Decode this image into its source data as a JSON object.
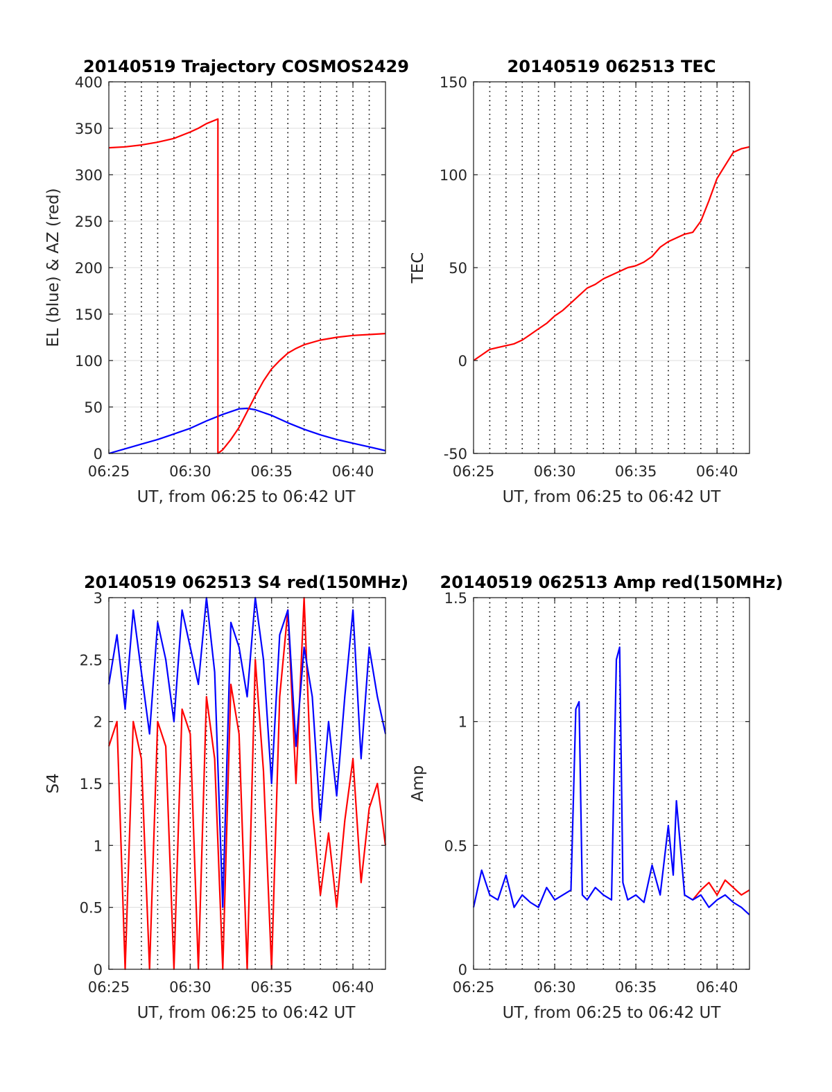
{
  "figure_background": "#ffffff",
  "colors": {
    "el": "#0000ff",
    "az": "#ff0000",
    "red_series": "#ff0000",
    "blue_series": "#0000ff",
    "grid": "#000000",
    "axes": "#262626"
  },
  "chart_data": [
    {
      "type": "line",
      "title": "20140519 Trajectory COSMOS2429",
      "xlabel": "UT, from 06:25 to 06:42 UT",
      "ylabel": "EL (blue) & AZ (red)",
      "xlim": [
        0,
        17
      ],
      "ylim": [
        0,
        400
      ],
      "yticks": [
        "0",
        "50",
        "100",
        "150",
        "200",
        "250",
        "300",
        "350",
        "400"
      ],
      "ytick_values": [
        0,
        50,
        100,
        150,
        200,
        250,
        300,
        350,
        400
      ],
      "xticks": [
        "06:25",
        "06:30",
        "06:35",
        "06:40"
      ],
      "xtick_values": [
        0,
        5,
        10,
        15
      ],
      "grid": "horizontal solid at y ticks, vertical dotted every minute",
      "series": [
        {
          "name": "EL (blue)",
          "color": "#0000ff",
          "x": [
            0,
            1,
            2,
            3,
            4,
            5,
            6,
            7,
            8,
            8.5,
            9,
            10,
            11,
            12,
            13,
            14,
            15,
            16,
            17
          ],
          "y": [
            0,
            5,
            10,
            15,
            21,
            27,
            35,
            42,
            48,
            48.5,
            47,
            41,
            33,
            26,
            20,
            15,
            11,
            7,
            3
          ]
        },
        {
          "name": "AZ (red)",
          "color": "#ff0000",
          "x": [
            0,
            1,
            2,
            3,
            4,
            5,
            5.5,
            6,
            6.7,
            6.7,
            7,
            7.5,
            8,
            8.5,
            9,
            9.5,
            10,
            10.5,
            11,
            11.5,
            12,
            13,
            14,
            15,
            16,
            17
          ],
          "y": [
            329,
            330,
            332,
            335,
            339,
            346,
            350,
            355,
            360,
            0,
            4,
            15,
            28,
            45,
            62,
            78,
            91,
            100,
            108,
            113,
            117,
            122,
            125,
            127,
            128,
            129
          ]
        }
      ]
    },
    {
      "type": "line",
      "title": "20140519 062513 TEC",
      "xlabel": "UT, from 06:25 to 06:42 UT",
      "ylabel": "TEC",
      "xlim": [
        0,
        17
      ],
      "ylim": [
        -50,
        150
      ],
      "yticks": [
        "-50",
        "0",
        "50",
        "100",
        "150"
      ],
      "ytick_values": [
        -50,
        0,
        50,
        100,
        150
      ],
      "xticks": [
        "06:25",
        "06:30",
        "06:35",
        "06:40"
      ],
      "xtick_values": [
        0,
        5,
        10,
        15
      ],
      "grid": "horizontal solid at y ticks, vertical dotted every minute",
      "series": [
        {
          "color": "#ff0000",
          "x": [
            0,
            0.5,
            1,
            1.5,
            2,
            2.5,
            3,
            3.5,
            4,
            4.5,
            5,
            5.5,
            6,
            6.5,
            7,
            7.5,
            8,
            8.5,
            9,
            9.5,
            10,
            10.5,
            11,
            11.5,
            12,
            12.5,
            13,
            13.5,
            14,
            14.5,
            15,
            15.5,
            16,
            16.5,
            17
          ],
          "y": [
            0,
            3,
            6,
            7,
            8,
            9,
            11,
            14,
            17,
            20,
            24,
            27,
            31,
            35,
            39,
            41,
            44,
            46,
            48,
            50,
            51,
            53,
            56,
            61,
            64,
            66,
            68,
            69,
            75,
            86,
            98,
            105,
            112,
            114,
            115
          ]
        }
      ]
    },
    {
      "type": "line",
      "title": "20140519 062513 S4 red(150MHz)",
      "xlabel": "UT, from 06:25 to 06:42 UT",
      "ylabel": "S4",
      "xlim": [
        0,
        17
      ],
      "ylim": [
        0,
        3
      ],
      "yticks": [
        "0",
        "0.5",
        "1",
        "1.5",
        "2",
        "2.5",
        "3"
      ],
      "ytick_values": [
        0,
        0.5,
        1,
        1.5,
        2,
        2.5,
        3
      ],
      "xticks": [
        "06:25",
        "06:30",
        "06:35",
        "06:40"
      ],
      "xtick_values": [
        0,
        5,
        10,
        15
      ],
      "grid": "horizontal solid at y ticks, vertical dotted every minute",
      "series": [
        {
          "color": "#ff0000",
          "x": [
            0,
            0.5,
            1,
            1.5,
            2,
            2.5,
            3,
            3.5,
            4,
            4.5,
            5,
            5.5,
            6,
            6.5,
            7,
            7.5,
            8,
            8.5,
            9,
            9.5,
            10,
            10.5,
            11,
            11.5,
            12,
            12.5,
            13,
            13.5,
            14,
            14.5,
            15,
            15.5,
            16,
            16.5,
            17
          ],
          "y": [
            1.8,
            2.0,
            0,
            2.0,
            1.7,
            0,
            2.0,
            1.8,
            0,
            2.1,
            1.9,
            0,
            2.2,
            1.7,
            0,
            2.3,
            1.9,
            0,
            2.5,
            1.6,
            0,
            2.2,
            2.9,
            1.5,
            3.0,
            1.3,
            0.6,
            1.1,
            0.5,
            1.2,
            1.7,
            0.7,
            1.3,
            1.5,
            1.0
          ]
        },
        {
          "color": "#0000ff",
          "x": [
            0,
            0.5,
            1,
            1.5,
            2,
            2.5,
            3,
            3.5,
            4,
            4.5,
            5,
            5.5,
            6,
            6.5,
            7,
            7.5,
            8,
            8.5,
            9,
            9.5,
            10,
            10.5,
            11,
            11.5,
            12,
            12.5,
            13,
            13.5,
            14,
            14.5,
            15,
            15.5,
            16,
            16.5,
            17
          ],
          "y": [
            2.3,
            2.7,
            2.1,
            2.9,
            2.4,
            1.9,
            2.8,
            2.5,
            2.0,
            2.9,
            2.6,
            2.3,
            3.0,
            2.4,
            0.5,
            2.8,
            2.6,
            2.2,
            3.0,
            2.5,
            1.5,
            2.7,
            2.9,
            1.8,
            2.6,
            2.2,
            1.2,
            2.0,
            1.4,
            2.2,
            2.9,
            1.7,
            2.6,
            2.2,
            1.9
          ]
        }
      ]
    },
    {
      "type": "line",
      "title": "20140519 062513 Amp red(150MHz)",
      "xlabel": "UT, from 06:25 to 06:42 UT",
      "ylabel": "Amp",
      "xlim": [
        0,
        17
      ],
      "ylim": [
        0,
        1.5
      ],
      "yticks": [
        "0",
        "0.5",
        "1",
        "1.5"
      ],
      "ytick_values": [
        0,
        0.5,
        1,
        1.5
      ],
      "xticks": [
        "06:25",
        "06:30",
        "06:35",
        "06:40"
      ],
      "xtick_values": [
        0,
        5,
        10,
        15
      ],
      "grid": "horizontal solid at y ticks, vertical dotted every minute",
      "series": [
        {
          "color": "#ff0000",
          "x": [
            13.5,
            14,
            14.5,
            15,
            15.5,
            16,
            16.5,
            17
          ],
          "y": [
            0.28,
            0.32,
            0.35,
            0.3,
            0.36,
            0.33,
            0.3,
            0.32
          ]
        },
        {
          "color": "#0000ff",
          "x": [
            0,
            0.5,
            1,
            1.5,
            2,
            2.5,
            3,
            3.5,
            4,
            4.5,
            5,
            5.5,
            6,
            6.3,
            6.5,
            6.7,
            7,
            7.5,
            8,
            8.5,
            8.8,
            9,
            9.2,
            9.5,
            10,
            10.5,
            11,
            11.5,
            12,
            12.3,
            12.5,
            13,
            13.5,
            14,
            14.5,
            15,
            15.5,
            16,
            16.5,
            17
          ],
          "y": [
            0.25,
            0.4,
            0.3,
            0.28,
            0.38,
            0.25,
            0.3,
            0.27,
            0.25,
            0.33,
            0.28,
            0.3,
            0.32,
            1.05,
            1.08,
            0.3,
            0.28,
            0.33,
            0.3,
            0.28,
            1.25,
            1.3,
            0.35,
            0.28,
            0.3,
            0.27,
            0.42,
            0.3,
            0.58,
            0.38,
            0.68,
            0.3,
            0.28,
            0.3,
            0.25,
            0.28,
            0.3,
            0.27,
            0.25,
            0.22
          ]
        }
      ]
    }
  ]
}
